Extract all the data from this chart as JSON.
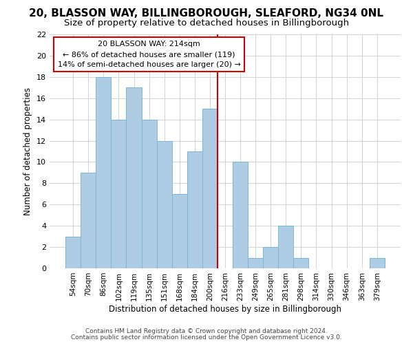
{
  "title": "20, BLASSON WAY, BILLINGBOROUGH, SLEAFORD, NG34 0NL",
  "subtitle": "Size of property relative to detached houses in Billingborough",
  "xlabel": "Distribution of detached houses by size in Billingborough",
  "ylabel": "Number of detached properties",
  "bar_labels": [
    "54sqm",
    "70sqm",
    "86sqm",
    "102sqm",
    "119sqm",
    "135sqm",
    "151sqm",
    "168sqm",
    "184sqm",
    "200sqm",
    "216sqm",
    "233sqm",
    "249sqm",
    "265sqm",
    "281sqm",
    "298sqm",
    "314sqm",
    "330sqm",
    "346sqm",
    "363sqm",
    "379sqm"
  ],
  "bar_values": [
    3,
    9,
    18,
    14,
    17,
    14,
    12,
    7,
    11,
    15,
    0,
    10,
    1,
    2,
    4,
    1,
    0,
    0,
    0,
    0,
    1
  ],
  "bar_color": "#aecde4",
  "bar_edge_color": "#7ab8d4",
  "vline_x_index": 10,
  "vline_color": "#cc0000",
  "ylim": [
    0,
    22
  ],
  "yticks": [
    0,
    2,
    4,
    6,
    8,
    10,
    12,
    14,
    16,
    18,
    20,
    22
  ],
  "annotation_title": "20 BLASSON WAY: 214sqm",
  "annotation_line1": "← 86% of detached houses are smaller (119)",
  "annotation_line2": "14% of semi-detached houses are larger (20) →",
  "annotation_box_color": "#ffffff",
  "annotation_box_edge": "#cc0000",
  "footer1": "Contains HM Land Registry data © Crown copyright and database right 2024.",
  "footer2": "Contains public sector information licensed under the Open Government Licence v3.0.",
  "background_color": "#ffffff",
  "grid_color": "#cccccc",
  "title_fontsize": 11,
  "subtitle_fontsize": 9.5
}
